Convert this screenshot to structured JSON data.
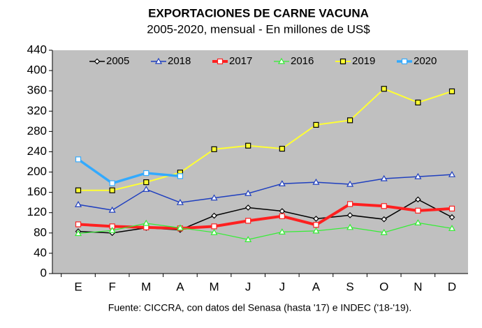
{
  "chart_data": {
    "type": "line",
    "title": "EXPORTACIONES DE CARNE VACUNA",
    "subtitle": "2005-2020, mensual - En millones de US$",
    "source": "Fuente: CICCRA, con datos del Senasa (hasta '17) e INDEC ('18-'19).",
    "categories": [
      "E",
      "F",
      "M",
      "A",
      "M",
      "J",
      "J",
      "A",
      "S",
      "O",
      "N",
      "D"
    ],
    "ylim": [
      0,
      440
    ],
    "yticks": [
      0,
      40,
      80,
      120,
      160,
      200,
      240,
      280,
      320,
      360,
      400,
      440
    ],
    "series": [
      {
        "name": "2005",
        "color": "#000000",
        "values": [
          83,
          80,
          90,
          86,
          114,
          130,
          123,
          108,
          115,
          107,
          146,
          111
        ]
      },
      {
        "name": "2018",
        "color": "#1f3fbf",
        "values": [
          136,
          125,
          166,
          140,
          149,
          158,
          177,
          180,
          176,
          187,
          191,
          195
        ]
      },
      {
        "name": "2017",
        "color": "#ff2020",
        "values": [
          97,
          93,
          91,
          89,
          93,
          104,
          113,
          96,
          137,
          133,
          124,
          128
        ]
      },
      {
        "name": "2016",
        "color": "#33ee33",
        "values": [
          79,
          85,
          99,
          90,
          81,
          67,
          82,
          84,
          91,
          81,
          100,
          89
        ]
      },
      {
        "name": "2019",
        "color": "#ffff33",
        "values": [
          164,
          164,
          180,
          199,
          245,
          252,
          246,
          293,
          302,
          364,
          337,
          359
        ]
      },
      {
        "name": "2020",
        "color": "#33aaff",
        "values": [
          225,
          178,
          198,
          192,
          null,
          null,
          null,
          null,
          null,
          null,
          null,
          null
        ]
      }
    ]
  }
}
